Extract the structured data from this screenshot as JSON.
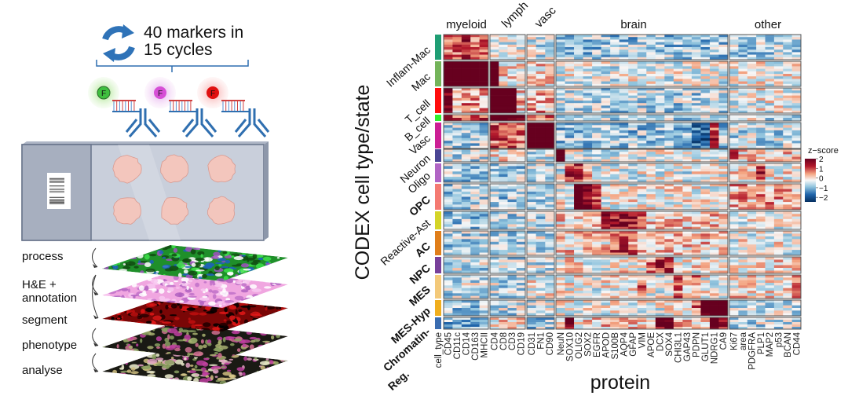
{
  "left_panel": {
    "cycle_text_line1": "40 markers in",
    "cycle_text_line2": "15 cycles",
    "fluorophore_label": "F",
    "fluorophore_colors": [
      "#3fbf3f",
      "#d64fd6",
      "#e01010"
    ],
    "steps": [
      {
        "lines": [
          "process"
        ]
      },
      {
        "lines": [
          "H&E +",
          "annotation"
        ]
      },
      {
        "lines": [
          "segment"
        ]
      },
      {
        "lines": [
          "phenotype"
        ]
      },
      {
        "lines": [
          "analyse"
        ]
      }
    ]
  },
  "chart_data": {
    "type": "heatmap",
    "ylabel": "CODEX cell type/state",
    "xlabel": "protein",
    "color_column_label": "cell_type",
    "legend": {
      "title": "z−score",
      "ticks": [
        "2",
        "1",
        "0",
        "−1",
        "−2"
      ],
      "range": [
        -2,
        2
      ],
      "colors": [
        "#053061",
        "#2166ac",
        "#92c5de",
        "#f7f7f7",
        "#f4a582",
        "#b2182b",
        "#67001f"
      ],
      "placement": "right"
    },
    "marker_groups": [
      {
        "name": "myeloid",
        "markers": [
          "CD45",
          "CD11c",
          "CD14",
          "CD163",
          "MHCII"
        ]
      },
      {
        "name": "lymph",
        "markers": [
          "CD4",
          "CD8",
          "CD3",
          "CD19"
        ]
      },
      {
        "name": "vasc",
        "markers": [
          "CD31",
          "FN1",
          "CD90"
        ]
      },
      {
        "name": "brain",
        "markers": [
          "NeuN",
          "SOX10",
          "OLIG2",
          "SOX2",
          "EGFR",
          "APOD",
          "S100B",
          "AQP4",
          "GFAP",
          "VIM",
          "APOE",
          "DCX",
          "SOX4",
          "CHI3L1",
          "GAP43",
          "PDPN",
          "GLUT1",
          "NDRG1",
          "CA9"
        ]
      },
      {
        "name": "other",
        "markers": [
          "Ki67",
          "area",
          "PDGFRA",
          "PLP1",
          "MAP2",
          "p53",
          "BCAN",
          "CD44"
        ]
      }
    ],
    "cell_types": [
      {
        "name": "Inflam-Mac",
        "color": "#1f9e74",
        "bold": false,
        "group_means": [
          0.8,
          0.0,
          -0.2,
          -0.5,
          -0.4
        ],
        "high": {
          "CD14": 1.4
        }
      },
      {
        "name": "Mac",
        "color": "#74b45a",
        "bold": false,
        "group_means": [
          2.3,
          0.2,
          0.3,
          -0.1,
          0.0
        ],
        "high": {
          "CD4": 2.3
        }
      },
      {
        "name": "T_cell",
        "color": "#ff0d0d",
        "bold": false,
        "group_means": [
          0.6,
          0.3,
          0.5,
          -0.4,
          0.0
        ],
        "high": {
          "CD45": 1.8,
          "CD4": 2.6,
          "CD8": 2.6,
          "CD3": 2.6
        }
      },
      {
        "name": "B_cell",
        "color": "#2ef02e",
        "bold": false,
        "group_means": [
          1.2,
          2.0,
          0.8,
          -0.3,
          -0.2
        ],
        "high": {}
      },
      {
        "name": "Vasc",
        "color": "#cc1f94",
        "bold": false,
        "group_means": [
          -0.4,
          1.0,
          2.6,
          -0.5,
          -0.3
        ],
        "high": {
          "GLUT1": -1.5,
          "PDPN": -1.2,
          "NDRG1": 1.2
        }
      },
      {
        "name": "Neuron",
        "color": "#4a4594",
        "bold": false,
        "group_means": [
          -0.3,
          0.2,
          -0.2,
          -0.1,
          0.3
        ],
        "high": {
          "NeuN": 2.6,
          "Ki67": 0.9,
          "PDGFRA": 1.0
        }
      },
      {
        "name": "Oligo",
        "color": "#b064c4",
        "bold": false,
        "group_means": [
          -0.4,
          -0.4,
          -0.4,
          -0.1,
          0.1
        ],
        "high": {
          "SOX10": 1.2,
          "OLIG2": 1.5,
          "SOX2": 0.8,
          "PLP1": 1.2
        }
      },
      {
        "name": "OPC",
        "color": "#f47a72",
        "bold": true,
        "group_means": [
          -0.4,
          -0.5,
          -0.5,
          0.0,
          0.5
        ],
        "high": {
          "OLIG2": 2.6,
          "SOX2": 1.5,
          "EGFR": 1.2
        }
      },
      {
        "name": "Reactive-Ast",
        "color": "#d4d428",
        "bold": false,
        "group_means": [
          -0.5,
          -0.4,
          -0.3,
          0.3,
          0.0
        ],
        "high": {
          "APOD": 1.5,
          "S100B": 1.6,
          "AQP4": 1.6,
          "GFAP": 1.5,
          "VIM": 1.0
        }
      },
      {
        "name": "AC",
        "color": "#e07e1a",
        "bold": true,
        "group_means": [
          -0.4,
          -0.4,
          -0.3,
          0.3,
          0.0
        ],
        "high": {
          "S100B": 1.0,
          "AQP4": 1.1,
          "GFAP": 0.9
        }
      },
      {
        "name": "NPC",
        "color": "#78409a",
        "bold": true,
        "group_means": [
          -0.3,
          -0.3,
          -0.2,
          0.1,
          0.2
        ],
        "high": {
          "DCX": 1.2,
          "SOX4": 1.2,
          "APOE": 0.8
        }
      },
      {
        "name": "MES",
        "color": "#f3c97a",
        "bold": true,
        "group_means": [
          -0.3,
          -0.3,
          0.0,
          0.0,
          0.2
        ],
        "high": {
          "CHI3L1": 1.0,
          "PDPN": 0.8,
          "VIM": 0.8,
          "CD44": 1.0
        }
      },
      {
        "name": "MES-Hyp",
        "color": "#f0ae1e",
        "bold": true,
        "group_means": [
          -0.5,
          -0.3,
          -0.2,
          0.0,
          -0.2
        ],
        "high": {
          "GLUT1": 2.0,
          "NDRG1": 2.6,
          "CA9": 2.6,
          "PDPN": 1.0
        }
      },
      {
        "name": "Chromatin-Reg.",
        "label_lines": [
          "Chromatin-",
          "Reg."
        ],
        "color": "#3a6cb0",
        "bold": true,
        "group_means": [
          -0.6,
          0.2,
          -0.5,
          0.3,
          -0.3
        ],
        "high": {
          "SOX10": 1.5,
          "DCX": 1.8,
          "SOX4": 2.0,
          "NDRG1": 2.0,
          "CA9": 1.6
        }
      }
    ]
  }
}
